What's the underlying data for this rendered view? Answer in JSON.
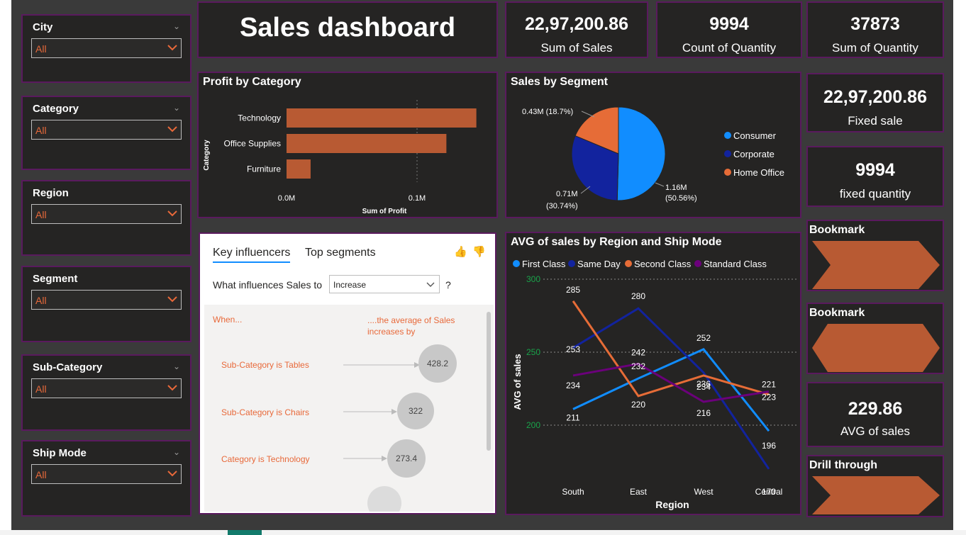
{
  "dashboard_title": "Sales dashboard",
  "slicers": [
    {
      "label": "City",
      "value": "All"
    },
    {
      "label": "Category",
      "value": "All"
    },
    {
      "label": "Region",
      "value": "All"
    },
    {
      "label": "Segment",
      "value": "All"
    },
    {
      "label": "Sub-Category",
      "value": "All"
    },
    {
      "label": "Ship Mode",
      "value": "All"
    }
  ],
  "kpis": {
    "sum_sales": {
      "value": "22,97,200.86",
      "label": "Sum of Sales"
    },
    "count_quantity": {
      "value": "9994",
      "label": "Count of Quantity"
    },
    "sum_quantity": {
      "value": "37873",
      "label": "Sum of Quantity"
    },
    "fixed_sale": {
      "value": "22,97,200.86",
      "label": "Fixed sale"
    },
    "fixed_quantity": {
      "value": "9994",
      "label": "fixed quantity"
    },
    "avg_sales": {
      "value": "229.86",
      "label": "AVG of sales"
    }
  },
  "buttons": {
    "bookmark1": "Bookmark",
    "bookmark2": "Bookmark",
    "drill_through": "Drill through"
  },
  "colors": {
    "canvas": "#3a3a3a",
    "card": "#252423",
    "border": "#5a1a5e",
    "accent": "#e8693a",
    "bar": "#b85a33"
  },
  "profit_chart": {
    "title": "Profit by Category",
    "ylabel": "Category",
    "xlabel": "Sum of Profit",
    "ticks": [
      "0.0M",
      "0.1M"
    ]
  },
  "segment_chart": {
    "title": "Sales by Segment",
    "legend": [
      "Consumer",
      "Corporate",
      "Home Office"
    ],
    "labels": {
      "consumer": "1.16M",
      "consumer_pct": "(50.56%)",
      "corporate": "0.71M",
      "corporate_pct": "(30.74%)",
      "home_office": "0.43M (18.7%)"
    }
  },
  "line_chart": {
    "title": "AVG of sales by Region and Ship Mode",
    "ylabel": "AVG of sales",
    "xlabel": "Region",
    "y_ticks": [
      "300",
      "250",
      "200"
    ]
  },
  "key_influencers": {
    "tab_active": "Key influencers",
    "tab_other": "Top segments",
    "question": "What influences Sales to",
    "dropdown_value": "Increase",
    "help": "?",
    "col_when": "When...",
    "col_avg": "....the average of Sales increases by",
    "rows": [
      {
        "label": "Sub-Category is Tables",
        "value": "428.2"
      },
      {
        "label": "Sub-Category is Chairs",
        "value": "322"
      },
      {
        "label": "Category is Technology",
        "value": "273.4"
      }
    ]
  },
  "chart_data": [
    {
      "type": "bar",
      "orientation": "horizontal",
      "title": "Profit by Category",
      "categories": [
        "Technology",
        "Office Supplies",
        "Furniture"
      ],
      "values": [
        145455,
        122491,
        18451
      ],
      "xlabel": "Sum of Profit",
      "ylabel": "Category",
      "xlim": [
        0,
        150000
      ],
      "x_ticks": [
        "0.0M",
        "0.1M"
      ],
      "color": "#b85a33"
    },
    {
      "type": "pie",
      "title": "Sales by Segment",
      "categories": [
        "Consumer",
        "Corporate",
        "Home Office"
      ],
      "values": [
        1.16,
        0.71,
        0.43
      ],
      "percent": [
        50.56,
        30.74,
        18.7
      ],
      "colors": [
        "#118dff",
        "#12239e",
        "#e66c37"
      ],
      "legend": "right"
    },
    {
      "type": "line",
      "title": "AVG of sales by Region and Ship Mode",
      "categories": [
        "South",
        "East",
        "West",
        "Central"
      ],
      "xlabel": "Region",
      "ylabel": "AVG of sales",
      "ylim": [
        170,
        300
      ],
      "y_ticks": [
        200,
        250,
        300
      ],
      "legend": "top-left",
      "series": [
        {
          "name": "First Class",
          "values": [
            211,
            232,
            252,
            196
          ],
          "color": "#118dff"
        },
        {
          "name": "Same Day",
          "values": [
            253,
            280,
            236,
            170
          ],
          "color": "#12239e"
        },
        {
          "name": "Second Class",
          "values": [
            285,
            220,
            234,
            221
          ],
          "color": "#e66c37"
        },
        {
          "name": "Standard Class",
          "values": [
            234,
            242,
            216,
            223
          ],
          "color": "#6b007b"
        }
      ]
    }
  ]
}
